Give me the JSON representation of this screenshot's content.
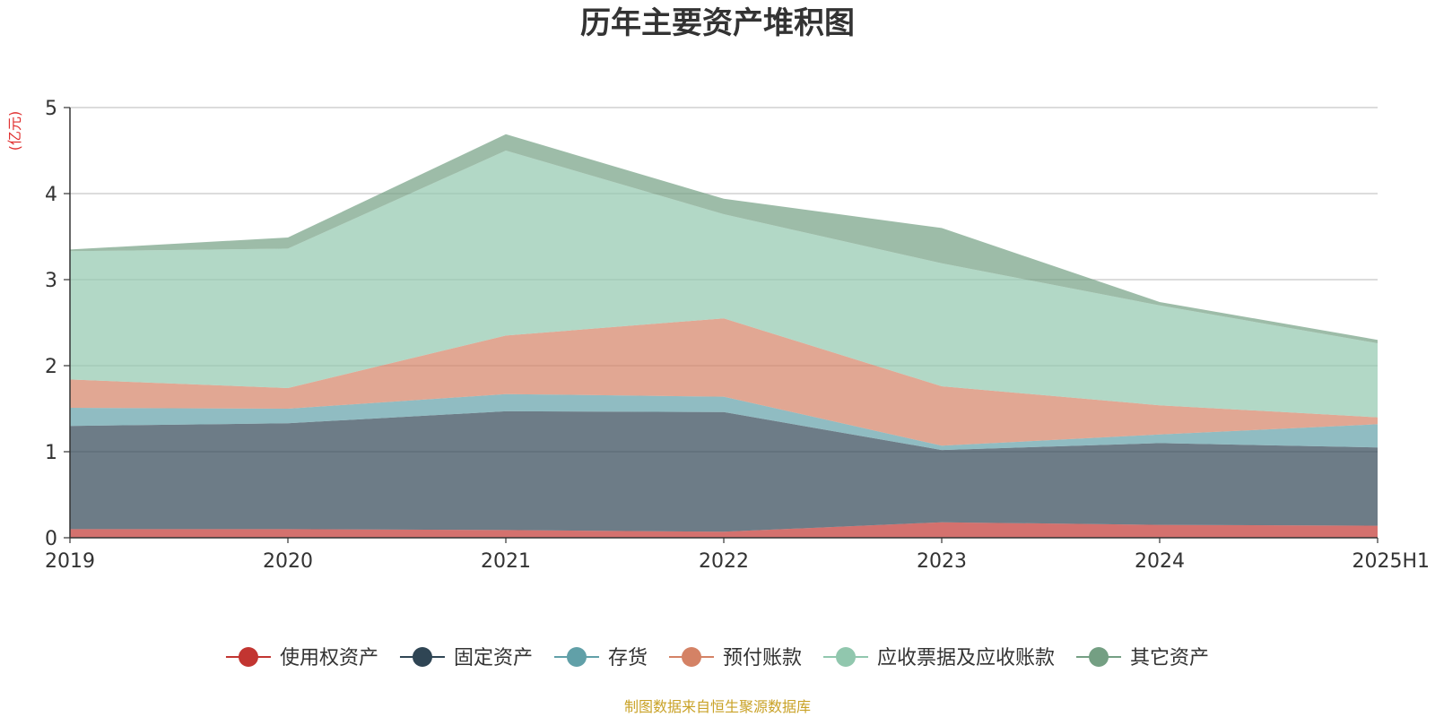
{
  "chart_data": {
    "type": "area",
    "stacked": true,
    "title": "历年主要资产堆积图",
    "ylabel": "(亿元)",
    "xlabel": "",
    "categories": [
      "2019",
      "2020",
      "2021",
      "2022",
      "2023",
      "2024",
      "2025H1"
    ],
    "ylim": [
      0,
      5
    ],
    "yticks": [
      "0",
      "1",
      "2",
      "3",
      "4",
      "5"
    ],
    "grid": true,
    "legend_position": "bottom",
    "series": [
      {
        "name": "使用权资产",
        "color": "#c23531",
        "values": [
          0.1,
          0.1,
          0.09,
          0.07,
          0.18,
          0.15,
          0.14
        ]
      },
      {
        "name": "固定资产",
        "color": "#2f4554",
        "values": [
          1.2,
          1.23,
          1.38,
          1.39,
          0.84,
          0.95,
          0.91
        ]
      },
      {
        "name": "存货",
        "color": "#61a0a8",
        "values": [
          0.21,
          0.17,
          0.2,
          0.18,
          0.05,
          0.1,
          0.27
        ]
      },
      {
        "name": "预付账款",
        "color": "#d48265",
        "values": [
          0.33,
          0.24,
          0.68,
          0.91,
          0.69,
          0.34,
          0.08
        ]
      },
      {
        "name": "应收票据及应收账款",
        "color": "#91c7ae",
        "values": [
          1.49,
          1.62,
          2.15,
          1.21,
          1.43,
          1.16,
          0.86
        ]
      },
      {
        "name": "其它资产",
        "color": "#749f83",
        "values": [
          0.02,
          0.13,
          0.19,
          0.18,
          0.41,
          0.04,
          0.04
        ]
      }
    ]
  },
  "footer": {
    "source": "制图数据来自恒生聚源数据库",
    "source_color": "#c9a227"
  },
  "unit_color": "#e03030"
}
